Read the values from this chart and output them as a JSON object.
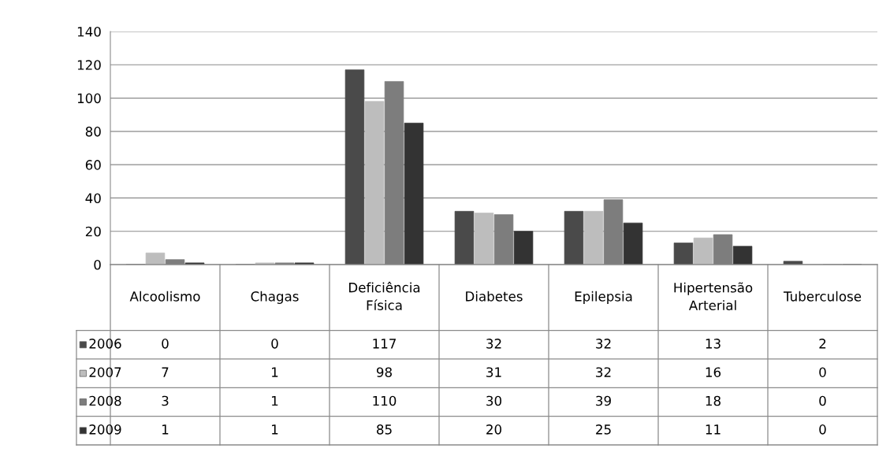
{
  "chart_data": {
    "type": "bar",
    "categories": [
      "Alcoolismo",
      "Chagas",
      "Deficiência\nFísica",
      "Diabetes",
      "Epilepsia",
      "Hipertensão\nArterial",
      "Tuberculose"
    ],
    "series": [
      {
        "name": "2006",
        "color": "#4a4a4a",
        "values": [
          0,
          0,
          117,
          32,
          32,
          13,
          2
        ]
      },
      {
        "name": "2007",
        "color": "#bdbdbd",
        "values": [
          7,
          1,
          98,
          31,
          32,
          16,
          0
        ]
      },
      {
        "name": "2008",
        "color": "#7d7d7d",
        "values": [
          3,
          1,
          110,
          30,
          39,
          18,
          0
        ]
      },
      {
        "name": "2009",
        "color": "#333333",
        "values": [
          1,
          1,
          85,
          20,
          25,
          11,
          0
        ]
      }
    ],
    "ylim": [
      0,
      140
    ],
    "yticks": [
      0,
      20,
      40,
      60,
      80,
      100,
      120,
      140
    ],
    "grid": "y",
    "legend": "bottom left",
    "data_labels": true
  }
}
